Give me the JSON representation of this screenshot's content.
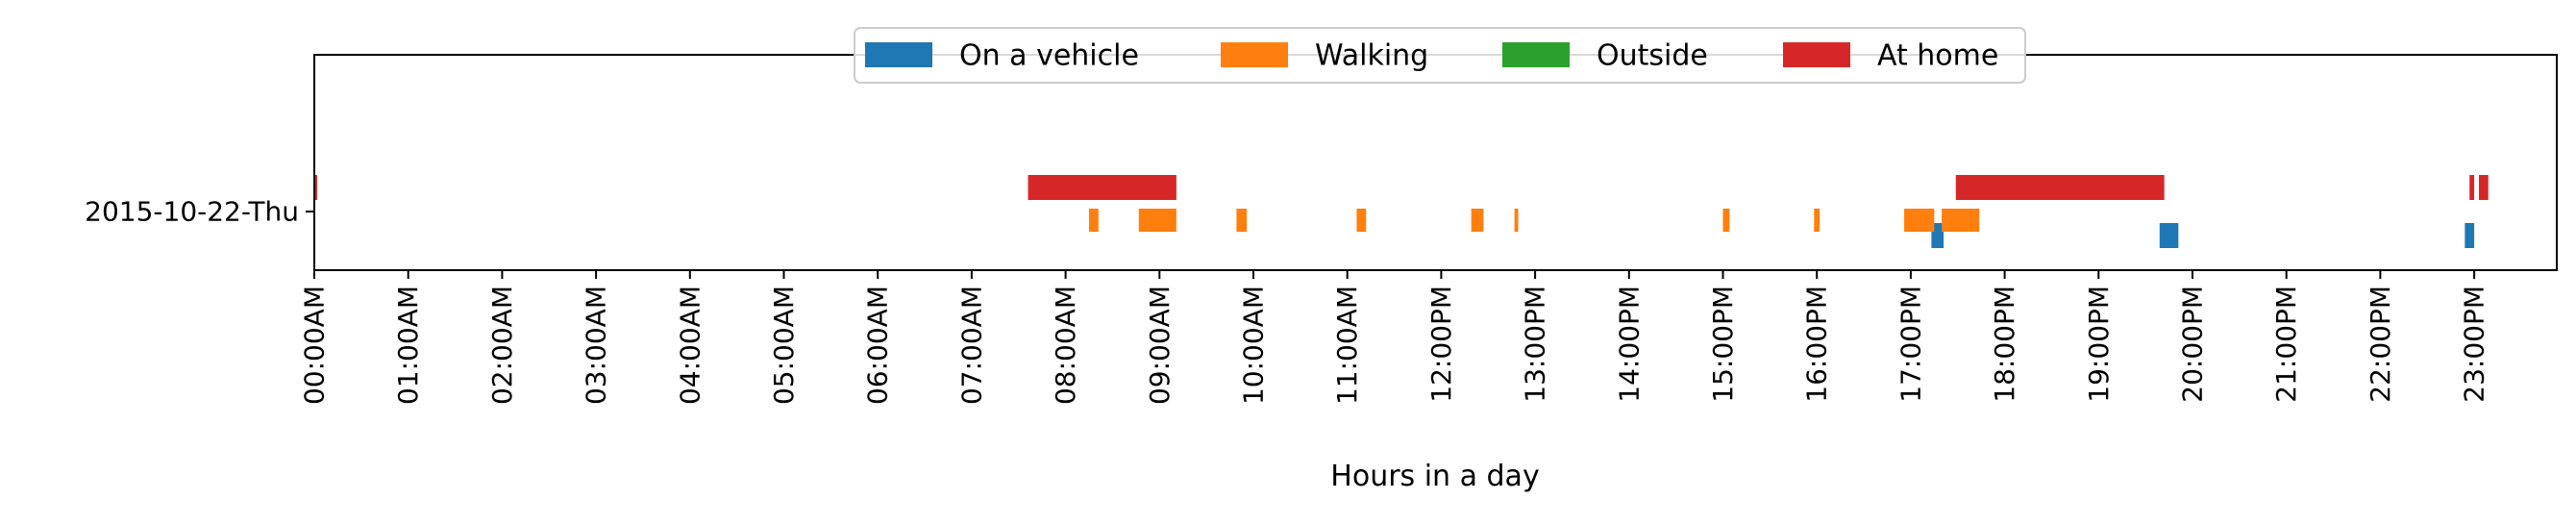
{
  "chart_data": {
    "type": "timeline",
    "xlabel": "Hours in a day",
    "ylabel": "",
    "xlim": [
      0,
      24
    ],
    "x_ticks": [
      "00:00AM",
      "01:00AM",
      "02:00AM",
      "03:00AM",
      "04:00AM",
      "05:00AM",
      "06:00AM",
      "07:00AM",
      "08:00AM",
      "09:00AM",
      "10:00AM",
      "11:00AM",
      "12:00PM",
      "13:00PM",
      "14:00PM",
      "15:00PM",
      "16:00PM",
      "17:00PM",
      "18:00PM",
      "19:00PM",
      "20:00PM",
      "21:00PM",
      "22:00PM",
      "23:00PM"
    ],
    "categories": [
      "2015-10-22-Thu"
    ],
    "legend_position": "top-center",
    "grid": false,
    "series": [
      {
        "name": "On a vehicle",
        "color": "#1f77b4",
        "intervals": [
          [
            17.22,
            17.35
          ],
          [
            19.65,
            19.85
          ],
          [
            22.9,
            23.0
          ]
        ]
      },
      {
        "name": "Walking",
        "color": "#ff7f0e",
        "intervals": [
          [
            8.25,
            8.35
          ],
          [
            8.78,
            9.18
          ],
          [
            9.82,
            9.93
          ],
          [
            11.1,
            11.2
          ],
          [
            12.32,
            12.45
          ],
          [
            12.78,
            12.82
          ],
          [
            15.0,
            15.07
          ],
          [
            15.97,
            16.03
          ],
          [
            16.93,
            17.25
          ],
          [
            17.33,
            17.73
          ]
        ]
      },
      {
        "name": "Outside",
        "color": "#2ca02c",
        "intervals": []
      },
      {
        "name": "At home",
        "color": "#d62728",
        "intervals": [
          [
            0.0,
            0.03
          ],
          [
            7.6,
            9.18
          ],
          [
            17.48,
            19.7
          ],
          [
            22.95,
            23.0
          ],
          [
            23.05,
            23.15
          ]
        ]
      }
    ]
  }
}
